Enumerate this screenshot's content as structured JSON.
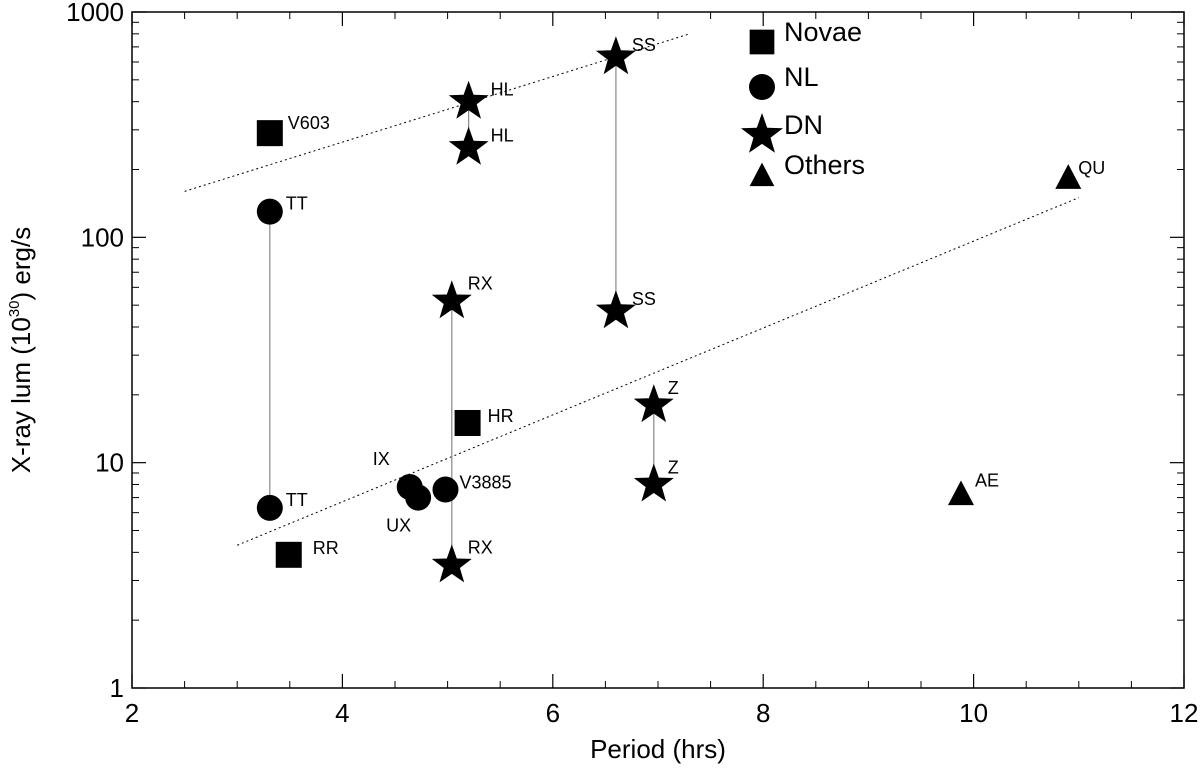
{
  "chart_data": {
    "type": "scatter",
    "title": "",
    "xlabel": "Period (hrs)",
    "ylabel_parts": [
      "X-ray lum (10",
      "30",
      ") erg/s"
    ],
    "xlim": [
      2,
      12
    ],
    "ylim": [
      1,
      1000
    ],
    "yscale": "log",
    "grid": false,
    "legend_position": "top-right",
    "x_ticks": [
      "2",
      "4",
      "6",
      "8",
      "10",
      "12"
    ],
    "y_ticks": [
      "1",
      "10",
      "100",
      "1000"
    ],
    "legend": [
      {
        "label": "Novae",
        "marker": "square"
      },
      {
        "label": "NL",
        "marker": "circle"
      },
      {
        "label": "DN",
        "marker": "star"
      },
      {
        "label": "Others",
        "marker": "triangle"
      }
    ],
    "series": [
      {
        "marker": "square",
        "points": [
          {
            "x": 3.31,
            "y": 290,
            "label": "V603"
          },
          {
            "x": 5.19,
            "y": 15,
            "label": "HR"
          },
          {
            "x": 3.49,
            "y": 3.9,
            "label": "RR"
          }
        ]
      },
      {
        "marker": "circle",
        "points": [
          {
            "x": 3.31,
            "y": 130,
            "label": "TT"
          },
          {
            "x": 3.31,
            "y": 6.3,
            "label": "TT"
          },
          {
            "x": 4.64,
            "y": 7.8,
            "label": "IX"
          },
          {
            "x": 4.72,
            "y": 7.0,
            "label": "UX"
          },
          {
            "x": 4.98,
            "y": 7.6,
            "label": "V3885"
          }
        ]
      },
      {
        "marker": "star",
        "points": [
          {
            "x": 5.2,
            "y": 400,
            "label": "HL"
          },
          {
            "x": 5.2,
            "y": 250,
            "label": "HL"
          },
          {
            "x": 6.6,
            "y": 630,
            "label": "SS"
          },
          {
            "x": 6.6,
            "y": 47,
            "label": "SS"
          },
          {
            "x": 5.04,
            "y": 52,
            "label": "RX"
          },
          {
            "x": 5.04,
            "y": 3.5,
            "label": "RX"
          },
          {
            "x": 6.96,
            "y": 18,
            "label": "Z"
          },
          {
            "x": 6.96,
            "y": 8.0,
            "label": "Z"
          }
        ]
      },
      {
        "marker": "triangle",
        "points": [
          {
            "x": 10.9,
            "y": 185,
            "label": "QU"
          },
          {
            "x": 9.88,
            "y": 7.3,
            "label": "AE"
          }
        ]
      }
    ],
    "connectors": [
      {
        "x": 3.31,
        "y1": 130,
        "y2": 6.3
      },
      {
        "x": 5.2,
        "y1": 400,
        "y2": 250
      },
      {
        "x": 6.6,
        "y1": 630,
        "y2": 47
      },
      {
        "x": 5.04,
        "y1": 52,
        "y2": 3.5
      },
      {
        "x": 6.96,
        "y1": 18,
        "y2": 8.0
      }
    ],
    "trend_lines": [
      {
        "x1": 2.5,
        "y1": 160,
        "x2": 7.3,
        "y2": 800
      },
      {
        "x1": 3.0,
        "y1": 4.3,
        "x2": 11.0,
        "y2": 150
      }
    ]
  }
}
